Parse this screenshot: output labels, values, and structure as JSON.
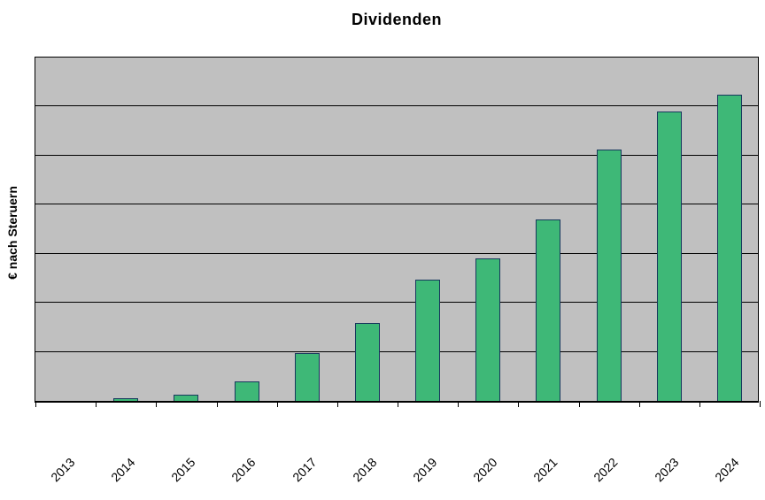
{
  "chart_data": {
    "type": "bar",
    "title": "Dividenden",
    "ylabel": "€ nach Steruern",
    "xlabel": "",
    "categories": [
      "2013",
      "2014",
      "2015",
      "2016",
      "2017",
      "2018",
      "2019",
      "2020",
      "2021",
      "2022",
      "2023",
      "2024"
    ],
    "values": [
      0,
      0.05,
      0.12,
      0.39,
      0.97,
      1.57,
      2.45,
      2.88,
      3.67,
      5.09,
      5.85,
      6.19
    ],
    "ylim": [
      0,
      7
    ],
    "gridline_interval": 1,
    "gridlines_horizontal": true,
    "y_tick_labels_visible": false,
    "x_label_rotation_deg": 45,
    "legend": "none",
    "note": "Y axis has no numeric tick labels; values measured in horizontal-gridline units (7 intervals between x-axis and plot top)."
  },
  "style": {
    "plot_background": "#c0c0c0",
    "gridline_color": "#000000",
    "bar_fill": "#3eb877",
    "bar_border": "#17375d",
    "axis_color": "#000000",
    "text_color": "#000000",
    "page_background": "#ffffff"
  }
}
